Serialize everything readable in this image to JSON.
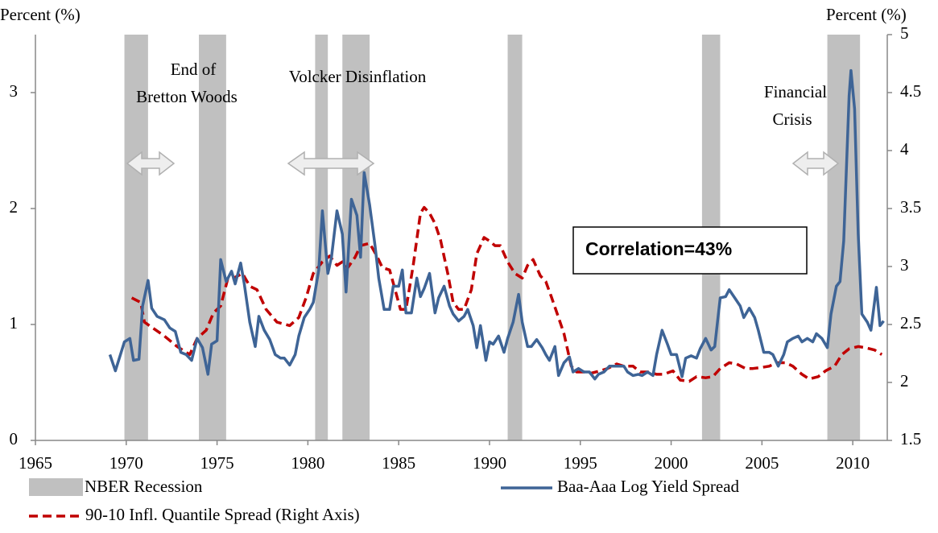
{
  "chart_data": {
    "type": "line",
    "y_label": "Percent (%)",
    "y2_label": "Percent (%)",
    "xlim": [
      1965,
      2011.9
    ],
    "xticks": [
      1965,
      1970,
      1975,
      1980,
      1985,
      1990,
      1995,
      2000,
      2005,
      2010
    ],
    "ylim": [
      0,
      3.5
    ],
    "yticks": [
      0,
      1,
      2,
      3
    ],
    "y2lim": [
      1.5,
      5
    ],
    "y2ticks": [
      1.5,
      2,
      2.5,
      3,
      3.5,
      4,
      4.5,
      5
    ],
    "recession_name": "NBER Recession",
    "recession_color": "#c0c0c0",
    "recessions": [
      {
        "start": 1969.9,
        "end": 1971.2
      },
      {
        "start": 1974.0,
        "end": 1975.5
      },
      {
        "start": 1980.4,
        "end": 1981.1
      },
      {
        "start": 1981.9,
        "end": 1983.4
      },
      {
        "start": 1991.0,
        "end": 1991.8
      },
      {
        "start": 2001.7,
        "end": 2002.7
      },
      {
        "start": 2008.6,
        "end": 2010.4
      }
    ],
    "annotations": [
      [
        "End of",
        "Bretton Woods"
      ],
      [
        "Volcker  Disinflation"
      ],
      [
        "Financial",
        "Crisis"
      ]
    ],
    "correlation_label": "Correlation=43%",
    "series": [
      {
        "name": "Baa-Aaa Log Yield Spread",
        "color": "#3e6496",
        "dashed": false,
        "x": [
          1969.1,
          1969.4,
          1969.9,
          1970.2,
          1970.4,
          1970.7,
          1970.9,
          1971.2,
          1971.4,
          1971.7,
          1972.1,
          1972.4,
          1972.7,
          1973.0,
          1973.3,
          1973.6,
          1973.9,
          1974.2,
          1974.5,
          1974.7,
          1975.0,
          1975.2,
          1975.5,
          1975.8,
          1976.0,
          1976.3,
          1976.5,
          1976.8,
          1977.1,
          1977.3,
          1977.6,
          1977.9,
          1978.2,
          1978.5,
          1978.7,
          1979.0,
          1979.3,
          1979.5,
          1979.8,
          1980.1,
          1980.3,
          1980.6,
          1980.8,
          1981.1,
          1981.3,
          1981.6,
          1981.9,
          1982.1,
          1982.4,
          1982.7,
          1982.9,
          1983.1,
          1983.4,
          1983.7,
          1983.9,
          1984.2,
          1984.5,
          1984.7,
          1985.0,
          1985.2,
          1985.4,
          1985.7,
          1986.0,
          1986.2,
          1986.4,
          1986.7,
          1987.0,
          1987.2,
          1987.5,
          1987.8,
          1988.0,
          1988.3,
          1988.6,
          1988.8,
          1989.1,
          1989.3,
          1989.5,
          1989.8,
          1990.0,
          1990.2,
          1990.5,
          1990.8,
          1991.0,
          1991.3,
          1991.6,
          1991.8,
          1992.1,
          1992.3,
          1992.6,
          1992.9,
          1993.1,
          1993.3,
          1993.6,
          1993.8,
          1994.1,
          1994.4,
          1994.6,
          1994.9,
          1995.2,
          1995.5,
          1995.8,
          1996.0,
          1996.3,
          1996.6,
          1996.8,
          1997.1,
          1997.4,
          1997.6,
          1997.9,
          1998.2,
          1998.4,
          1998.7,
          1999.0,
          1999.2,
          1999.5,
          1999.8,
          2000.0,
          2000.3,
          2000.6,
          2000.8,
          2001.1,
          2001.4,
          2001.6,
          2001.9,
          2002.2,
          2002.4,
          2002.7,
          2003.0,
          2003.2,
          2003.5,
          2003.8,
          2004.0,
          2004.3,
          2004.6,
          2004.8,
          2005.1,
          2005.4,
          2005.6,
          2005.9,
          2006.2,
          2006.4,
          2006.7,
          2007.0,
          2007.2,
          2007.5,
          2007.8,
          2008.0,
          2008.3,
          2008.6,
          2008.8,
          2009.1,
          2009.3,
          2009.5,
          2009.8,
          2009.9,
          2010.1,
          2010.3,
          2010.5,
          2010.8,
          2011.0,
          2011.3,
          2011.5,
          2011.7
        ],
        "values": [
          0.74,
          0.6,
          0.85,
          0.88,
          0.69,
          0.7,
          1.16,
          1.38,
          1.14,
          1.07,
          1.04,
          0.97,
          0.94,
          0.76,
          0.74,
          0.69,
          0.88,
          0.8,
          0.57,
          0.83,
          0.86,
          1.56,
          1.37,
          1.46,
          1.35,
          1.53,
          1.35,
          1.02,
          0.81,
          1.07,
          0.95,
          0.87,
          0.74,
          0.71,
          0.71,
          0.65,
          0.74,
          0.9,
          1.06,
          1.13,
          1.19,
          1.47,
          1.98,
          1.44,
          1.58,
          1.98,
          1.78,
          1.28,
          2.08,
          1.94,
          1.58,
          2.31,
          2.03,
          1.68,
          1.4,
          1.13,
          1.13,
          1.33,
          1.33,
          1.47,
          1.1,
          1.1,
          1.4,
          1.24,
          1.31,
          1.44,
          1.1,
          1.23,
          1.33,
          1.16,
          1.09,
          1.03,
          1.07,
          1.13,
          0.99,
          0.8,
          0.99,
          0.69,
          0.85,
          0.83,
          0.9,
          0.76,
          0.88,
          1.02,
          1.26,
          1.02,
          0.81,
          0.81,
          0.87,
          0.8,
          0.74,
          0.69,
          0.81,
          0.56,
          0.67,
          0.72,
          0.59,
          0.62,
          0.59,
          0.59,
          0.53,
          0.57,
          0.59,
          0.64,
          0.64,
          0.64,
          0.64,
          0.59,
          0.56,
          0.57,
          0.56,
          0.59,
          0.56,
          0.74,
          0.95,
          0.83,
          0.74,
          0.74,
          0.55,
          0.71,
          0.73,
          0.71,
          0.79,
          0.88,
          0.78,
          0.81,
          1.23,
          1.24,
          1.3,
          1.23,
          1.16,
          1.06,
          1.14,
          1.06,
          0.95,
          0.76,
          0.76,
          0.74,
          0.64,
          0.74,
          0.85,
          0.88,
          0.9,
          0.85,
          0.88,
          0.85,
          0.92,
          0.88,
          0.8,
          1.09,
          1.33,
          1.37,
          1.72,
          2.97,
          3.19,
          2.86,
          1.78,
          1.09,
          1.02,
          0.95,
          1.32,
          0.99,
          1.03
        ]
      },
      {
        "name": "90-10 Infl. Quantile Spread (Right Axis)",
        "color": "#c00000",
        "dashed": true,
        "axis": "y2",
        "x": [
          1970.3,
          1970.8,
          1971.0,
          1972.1,
          1972.8,
          1973.5,
          1973.9,
          1974.4,
          1974.8,
          1975.2,
          1975.6,
          1975.9,
          1976.4,
          1976.8,
          1977.2,
          1977.7,
          1978.3,
          1979.0,
          1979.5,
          1979.9,
          1980.3,
          1980.8,
          1981.2,
          1981.6,
          1981.9,
          1982.2,
          1982.6,
          1982.9,
          1983.4,
          1983.8,
          1984.1,
          1984.5,
          1984.8,
          1985.1,
          1985.4,
          1985.8,
          1986.2,
          1986.4,
          1986.7,
          1987.0,
          1987.3,
          1987.7,
          1988.0,
          1988.3,
          1988.6,
          1989.0,
          1989.3,
          1989.7,
          1990.0,
          1990.3,
          1990.6,
          1991.0,
          1991.4,
          1991.8,
          1992.1,
          1992.4,
          1992.8,
          1993.1,
          1993.4,
          1993.8,
          1994.1,
          1994.5,
          1994.8,
          1995.2,
          1995.6,
          1996.1,
          1996.5,
          1997.0,
          1997.4,
          1997.9,
          1998.3,
          1998.8,
          1999.2,
          1999.6,
          2000.1,
          2000.5,
          2001.0,
          2001.4,
          2001.9,
          2002.3,
          2002.7,
          2003.2,
          2003.6,
          2004.1,
          2004.5,
          2005.0,
          2005.4,
          2005.8,
          2006.3,
          2006.7,
          2007.2,
          2007.6,
          2008.1,
          2008.5,
          2009.0,
          2009.4,
          2009.8,
          2010.3,
          2010.7,
          2011.2,
          2011.6
        ],
        "values": [
          2.73,
          2.69,
          2.52,
          2.4,
          2.31,
          2.24,
          2.38,
          2.45,
          2.6,
          2.66,
          2.9,
          2.9,
          2.94,
          2.83,
          2.8,
          2.63,
          2.52,
          2.49,
          2.56,
          2.73,
          2.94,
          3.04,
          3.09,
          3.01,
          3.04,
          2.99,
          3.08,
          3.18,
          3.2,
          3.09,
          2.99,
          2.97,
          2.8,
          2.63,
          2.63,
          3.01,
          3.46,
          3.51,
          3.46,
          3.37,
          3.23,
          2.94,
          2.69,
          2.63,
          2.63,
          2.8,
          3.11,
          3.25,
          3.22,
          3.18,
          3.18,
          3.04,
          2.94,
          2.9,
          3.01,
          3.06,
          2.92,
          2.87,
          2.74,
          2.56,
          2.42,
          2.14,
          2.09,
          2.09,
          2.08,
          2.1,
          2.12,
          2.16,
          2.14,
          2.14,
          2.09,
          2.09,
          2.07,
          2.07,
          2.1,
          2.02,
          2.01,
          2.05,
          2.04,
          2.05,
          2.12,
          2.17,
          2.16,
          2.12,
          2.12,
          2.13,
          2.14,
          2.17,
          2.17,
          2.14,
          2.07,
          2.03,
          2.05,
          2.1,
          2.14,
          2.24,
          2.29,
          2.31,
          2.3,
          2.28,
          2.24
        ]
      }
    ]
  }
}
